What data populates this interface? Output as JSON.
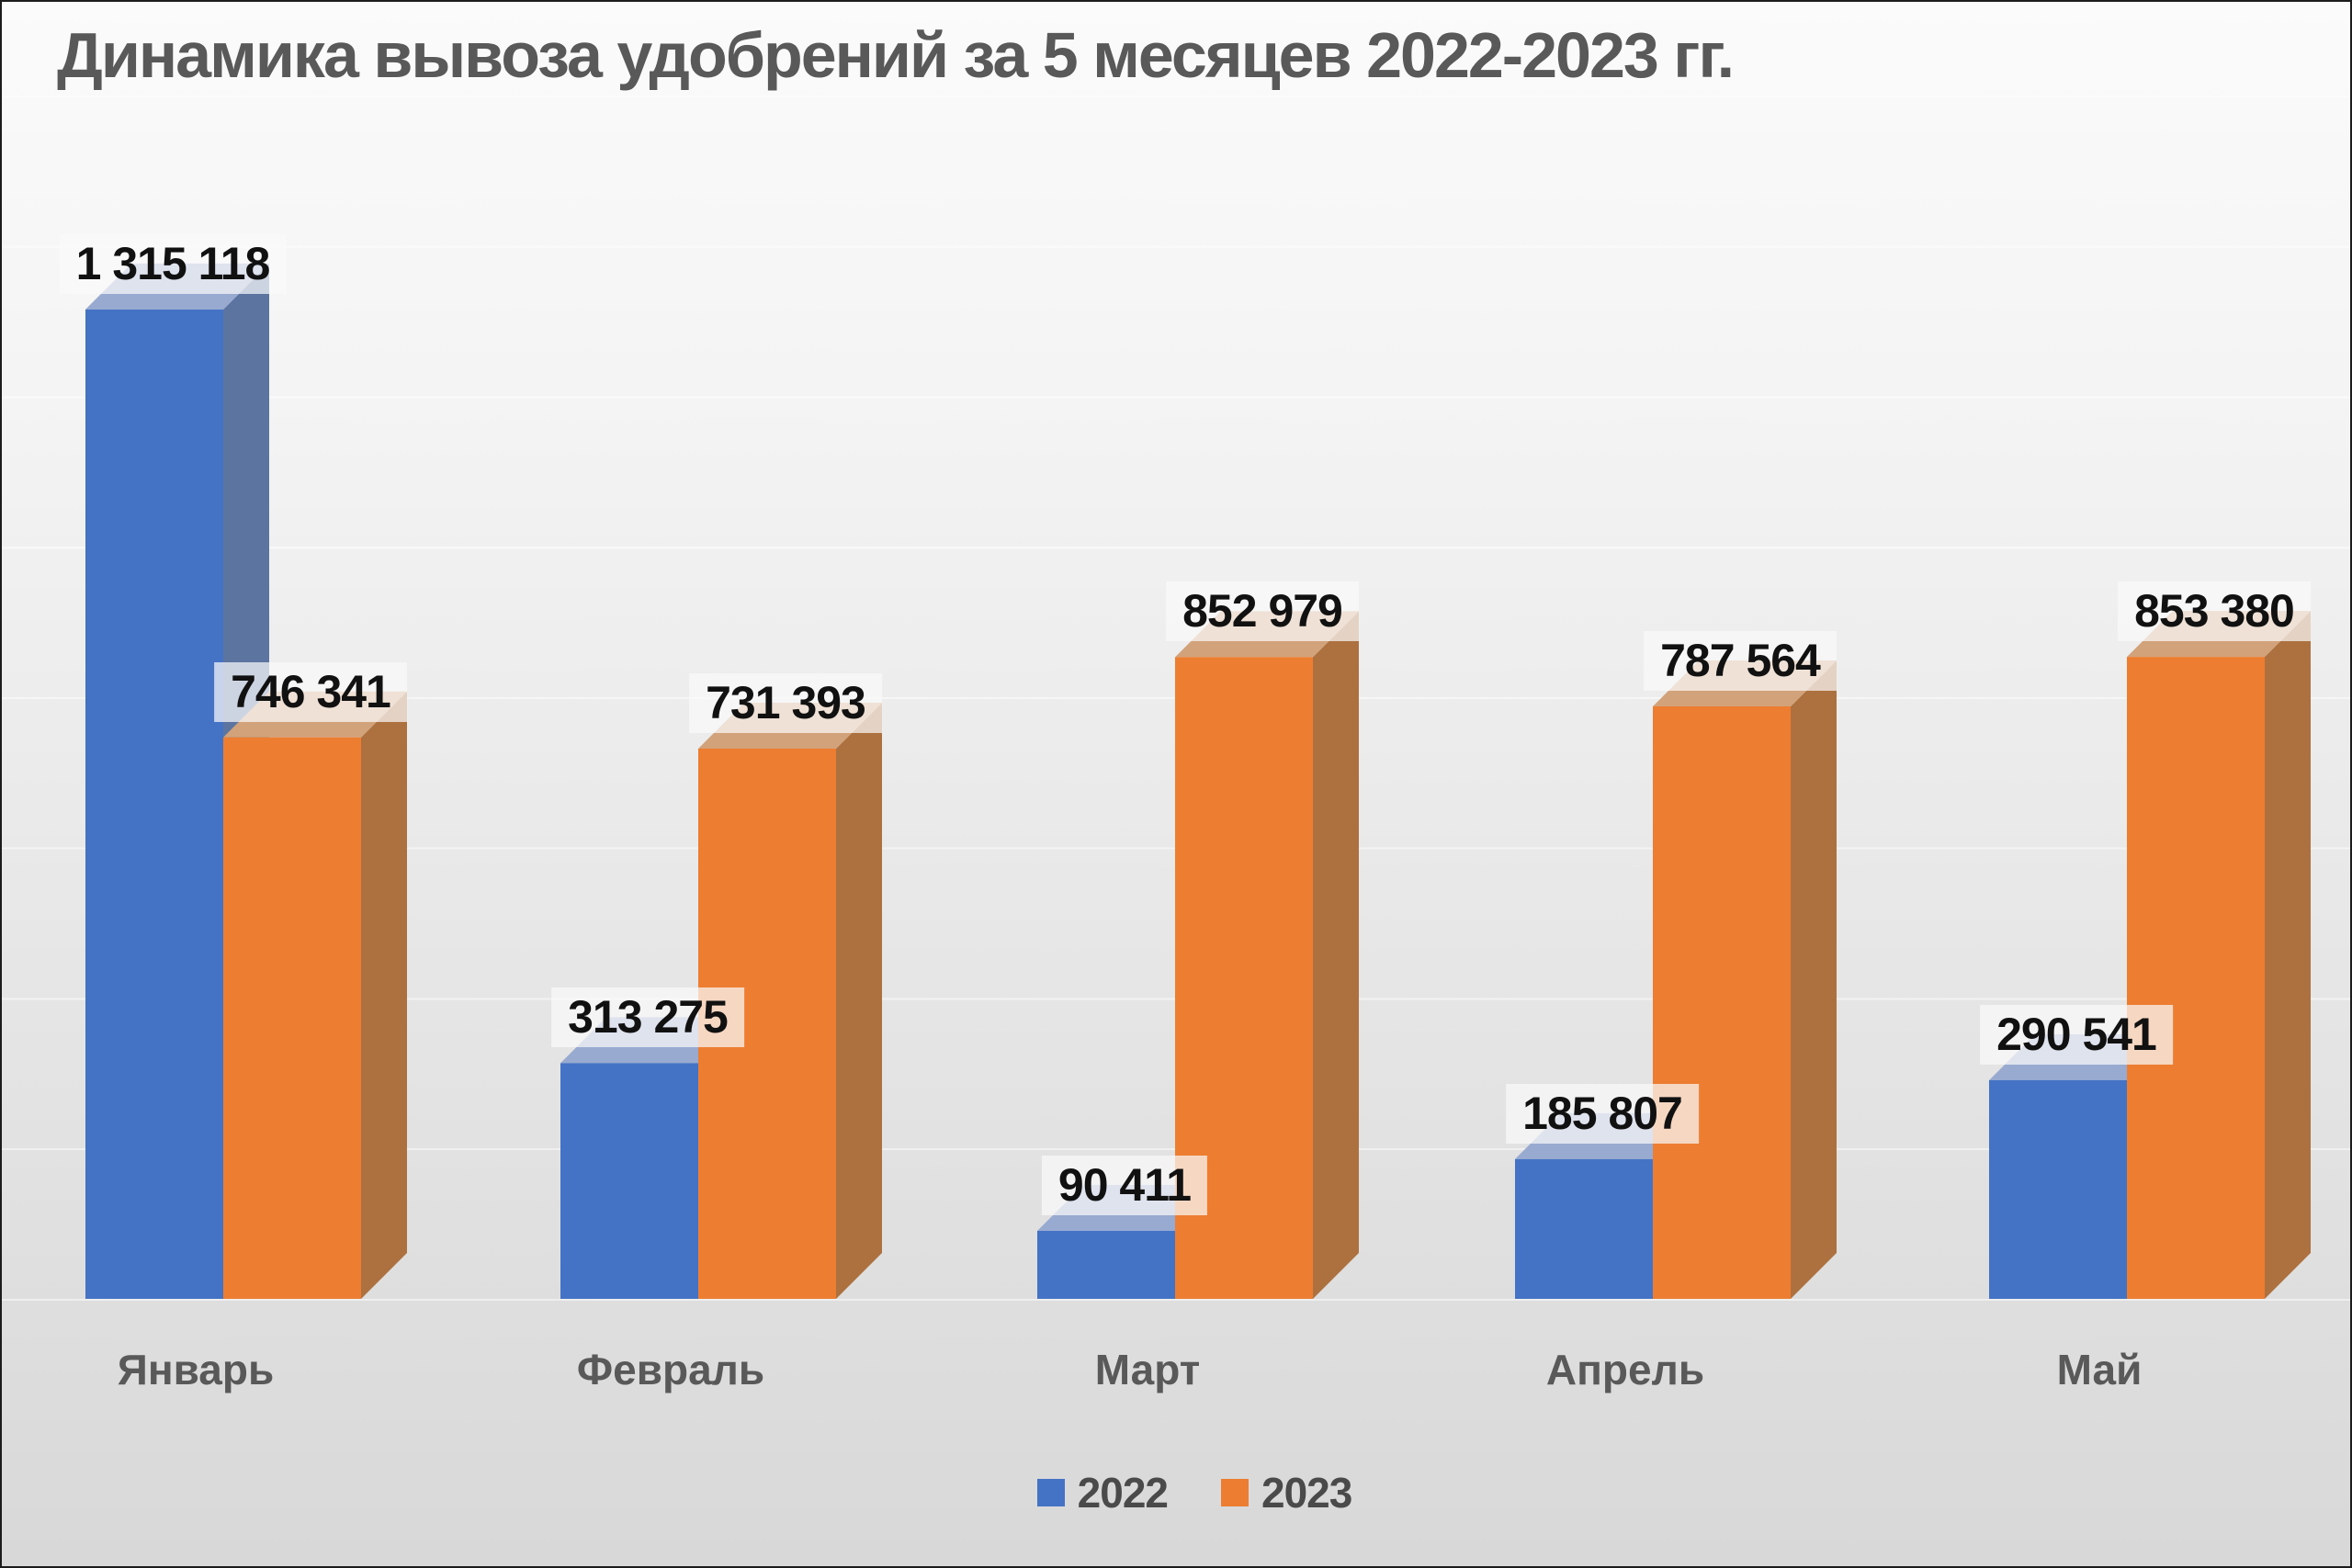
{
  "title": "Динамика вывоза удобрений за 5 месяцев 2022-2023 гг.",
  "chart_data": {
    "type": "bar",
    "style": "3d-clustered-columns",
    "title": "Динамика вывоза удобрений за 5 месяцев 2022-2023 гг.",
    "categories": [
      "Январь",
      "Февраль",
      "Март",
      "Апрель",
      "Май"
    ],
    "series": [
      {
        "name": "2022",
        "values": [
          1315118,
          313275,
          90411,
          185807,
          290541
        ],
        "labels": [
          "1 315 118",
          "313 275",
          "90 411",
          "185 807",
          "290 541"
        ],
        "color": "#4472C4",
        "color_top": "#99AAD1",
        "color_side": "#5C74A0"
      },
      {
        "name": "2023",
        "values": [
          746341,
          731393,
          852979,
          787564,
          853380
        ],
        "labels": [
          "746 341",
          "731 393",
          "852 979",
          "787 564",
          "853 380"
        ],
        "color": "#ED7D31",
        "color_top": "#D2A37B",
        "color_side": "#AC713F"
      }
    ],
    "xlabel": "",
    "ylabel": "",
    "ylim": [
      0,
      1600000
    ],
    "gridlines": "faint-horizontal",
    "value_axis_visible": false,
    "data_labels_visible": true,
    "legend_position": "bottom"
  },
  "legend": {
    "items": [
      {
        "label": "2022",
        "color": "#4472C4"
      },
      {
        "label": "2023",
        "color": "#ED7D31"
      }
    ]
  },
  "colors": {
    "title_text": "#595959",
    "category_text": "#595959",
    "data_label_text": "#111111",
    "data_label_bg": "rgba(250,250,250,0.72)",
    "background_top": "#fbfbfb",
    "background_bottom": "#d8d8d8"
  }
}
